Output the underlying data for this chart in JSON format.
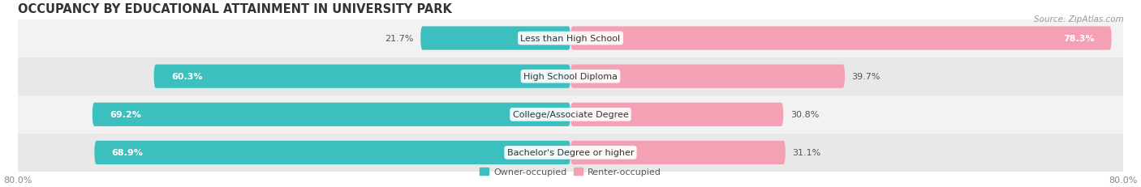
{
  "title": "OCCUPANCY BY EDUCATIONAL ATTAINMENT IN UNIVERSITY PARK",
  "source": "Source: ZipAtlas.com",
  "categories": [
    "Less than High School",
    "High School Diploma",
    "College/Associate Degree",
    "Bachelor's Degree or higher"
  ],
  "owner_values": [
    21.7,
    60.3,
    69.2,
    68.9
  ],
  "renter_values": [
    78.3,
    39.7,
    30.8,
    31.1
  ],
  "owner_color": "#3bbfbf",
  "renter_color": "#f4a0b5",
  "bar_height": 0.62,
  "xlim_left": -80.0,
  "xlim_right": 80.0,
  "x_axis_left_label": "80.0%",
  "x_axis_right_label": "80.0%",
  "title_fontsize": 10.5,
  "label_fontsize": 8.0,
  "cat_fontsize": 8.0,
  "tick_fontsize": 8.0,
  "legend_fontsize": 8.0,
  "source_fontsize": 7.5
}
